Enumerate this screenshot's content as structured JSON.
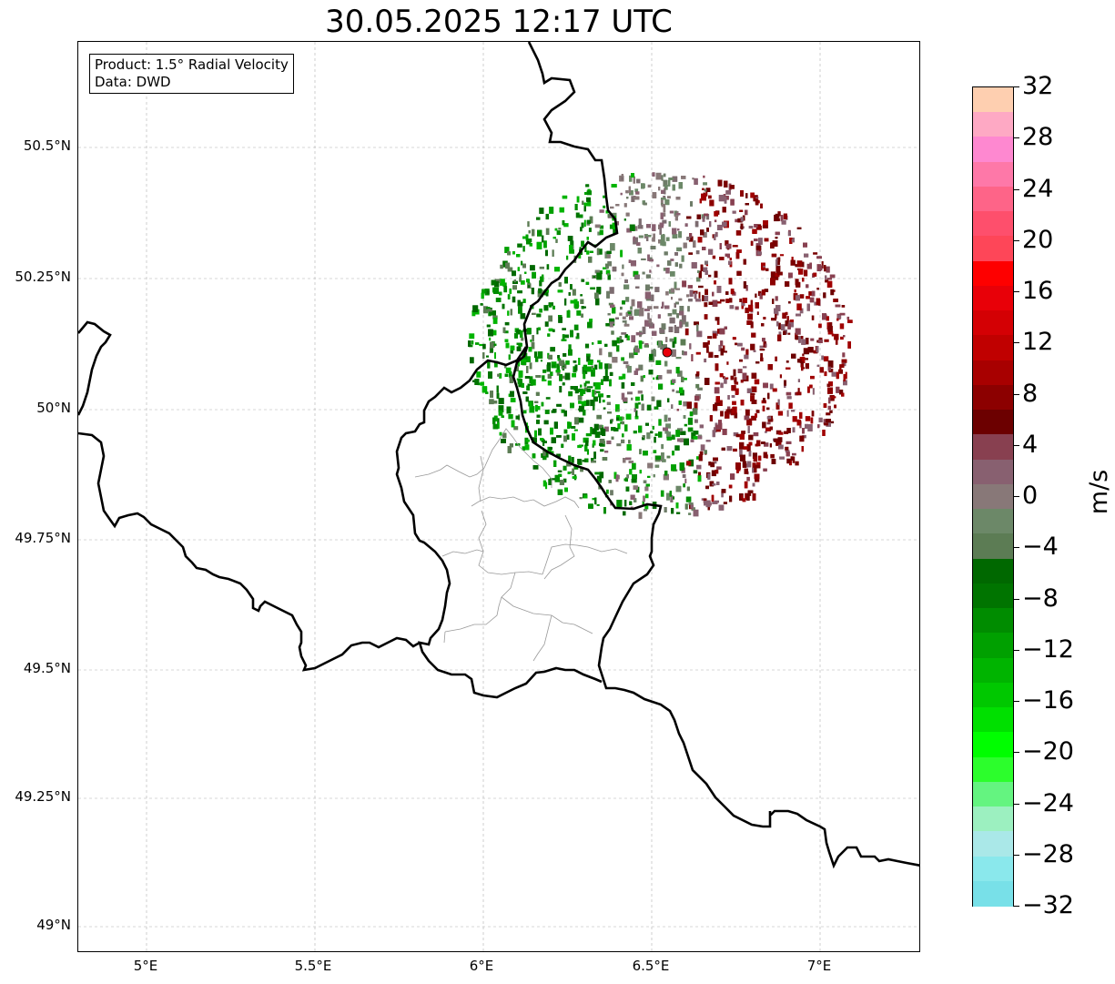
{
  "title": "30.05.2025 12:17 UTC",
  "info_box": {
    "product": "Product: 1.5° Radial Velocity",
    "source": "Data: DWD"
  },
  "map": {
    "lat_labels": [
      "50.5°N",
      "50.25°N",
      "50°N",
      "49.75°N",
      "49.5°N",
      "49.25°N",
      "49°N"
    ],
    "lon_labels": [
      "5°E",
      "5.5°E",
      "6°E",
      "6.5°E",
      "7°E"
    ],
    "radar_site_color": "#e8000b",
    "gridline_color": "#b0b0b0"
  },
  "colorbar": {
    "unit": "m/s",
    "tick_labels": [
      "32",
      "28",
      "24",
      "20",
      "16",
      "12",
      "8",
      "4",
      "0",
      "−4",
      "−8",
      "−12",
      "−16",
      "−20",
      "−24",
      "−28",
      "−32"
    ],
    "colors_top_to_bottom": [
      "#fecfb0",
      "#fea9c4",
      "#fe88d0",
      "#fe78a8",
      "#fe6488",
      "#fe4f6c",
      "#fe4658",
      "#fe0000",
      "#e80008",
      "#d40004",
      "#c00000",
      "#a80000",
      "#8c0000",
      "#6c0000",
      "#884050",
      "#886070",
      "#887878",
      "#6c8868",
      "#5c7c54",
      "#006800",
      "#007400",
      "#008c00",
      "#00a000",
      "#00b400",
      "#00c800",
      "#00e000",
      "#00fe00",
      "#2cfe2c",
      "#64f480",
      "#9cf0c0",
      "#aae8e8",
      "#8ae8ec",
      "#78e0e8"
    ]
  }
}
